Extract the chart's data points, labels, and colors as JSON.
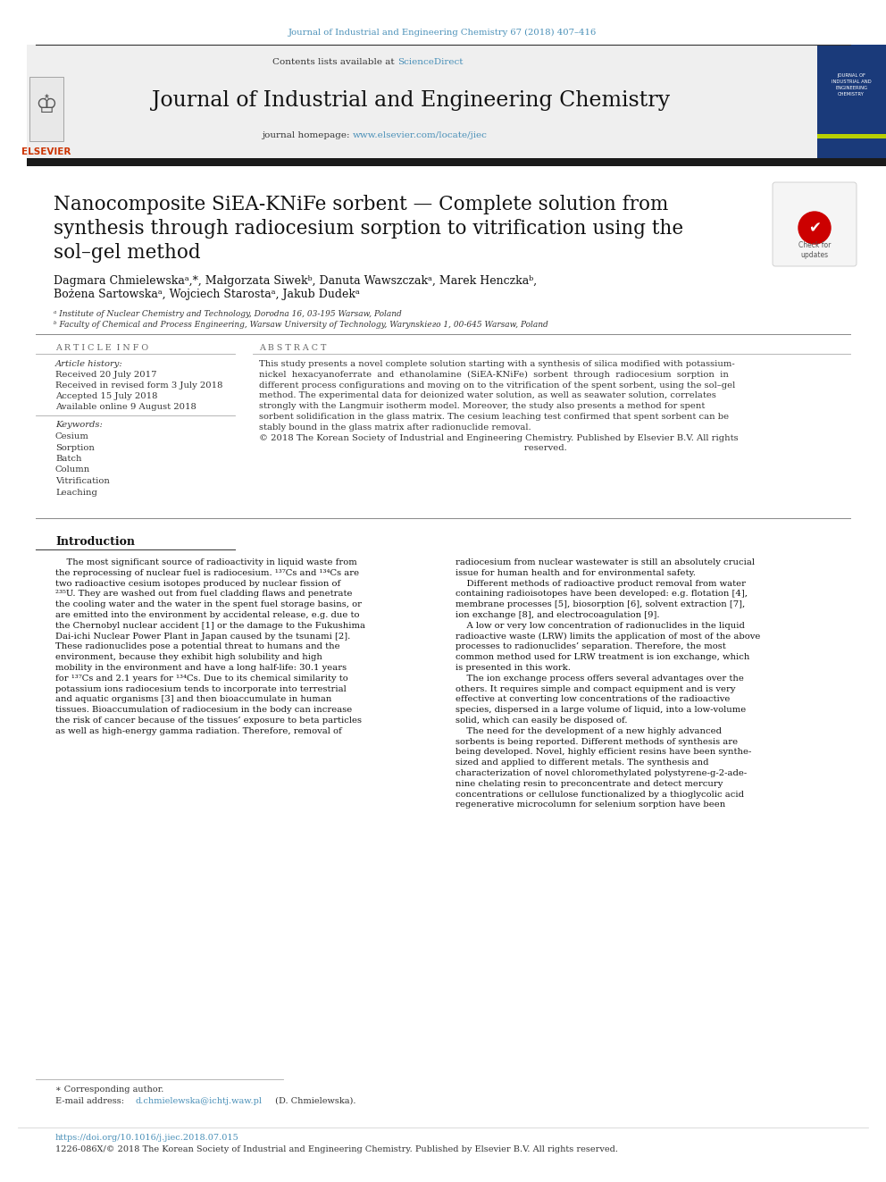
{
  "page_bg": "#ffffff",
  "top_journal_ref": "Journal of Industrial and Engineering Chemistry 67 (2018) 407–416",
  "top_journal_ref_color": "#4a90b8",
  "journal_title": "Journal of Industrial and Engineering Chemistry",
  "journal_homepage_url": "www.elsevier.com/locate/jiec",
  "journal_homepage_color": "#4a90b8",
  "black_bar_color": "#1a1a1a",
  "article_title_line1": "Nanocomposite SiEA-KNiFe sorbent — Complete solution from",
  "article_title_line2": "synthesis through radiocesium sorption to vitrification using the",
  "article_title_line3": "sol–gel method",
  "affil_a": "ᵃ Institute of Nuclear Chemistry and Technology, Dorodna 16, 03-195 Warsaw, Poland",
  "affil_b": "ᵇ Faculty of Chemical and Process Engineering, Warsaw University of Technology, Warynskiего 1, 00-645 Warsaw, Poland",
  "article_info_header": "A R T I C L E  I N F O",
  "abstract_header": "A B S T R A C T",
  "article_history_label": "Article history:",
  "received": "Received 20 July 2017",
  "revised": "Received in revised form 3 July 2018",
  "accepted": "Accepted 15 July 2018",
  "available": "Available online 9 August 2018",
  "keywords_label": "Keywords:",
  "keywords": [
    "Cesium",
    "Sorption",
    "Batch",
    "Column",
    "Vitrification",
    "Leaching"
  ],
  "footnote_star": "∗ Corresponding author.",
  "footnote_email_label": "E-mail address: ",
  "footnote_email_link": "d.chmielewska@ichtj.waw.pl",
  "footnote_email_rest": " (D. Chmielewska).",
  "footnote_email_color": "#4a90b8",
  "footer_doi": "https://doi.org/10.1016/j.jiec.2018.07.015",
  "footer_doi_color": "#4a90b8",
  "footer_copyright": "1226-086X/© 2018 The Korean Society of Industrial and Engineering Chemistry. Published by Elsevier B.V. All rights reserved."
}
